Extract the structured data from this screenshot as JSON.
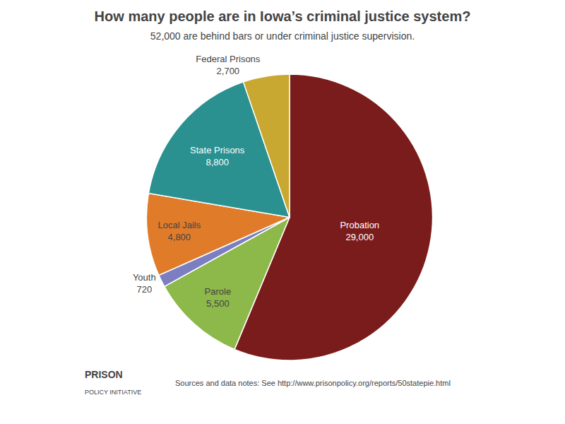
{
  "chart_data": {
    "type": "pie",
    "title": "How many people are in Iowa’s criminal justice system?",
    "subtitle": "52,000 are behind bars or under criminal justice supervision.",
    "categories": [
      "Probation",
      "Parole",
      "Youth",
      "Local Jails",
      "State Prisons",
      "Federal Prisons"
    ],
    "values": [
      29000,
      5500,
      720,
      4800,
      8800,
      2700
    ],
    "value_labels": [
      "29,000",
      "5,500",
      "720",
      "4,800",
      "8,800",
      "2,700"
    ],
    "colors": [
      "#7B1C1C",
      "#8DB84A",
      "#7B7EC0",
      "#E07B2A",
      "#2A9090",
      "#C8A830"
    ],
    "data_labels": true,
    "annotations": [
      "PRISON",
      "POLICY INITIATIVE",
      "Sources and data notes: See http://www.prisonpolicy.org/reports/50statepie.html"
    ]
  }
}
